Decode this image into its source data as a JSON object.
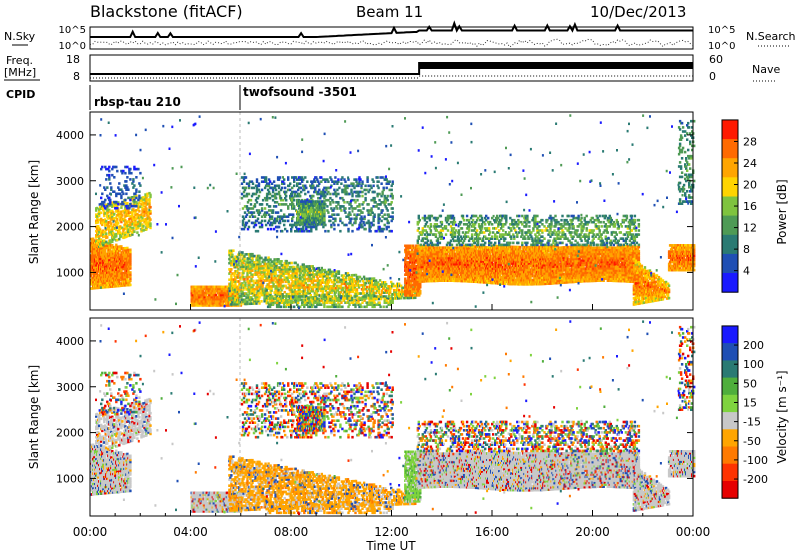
{
  "header": {
    "station": "Blackstone (fitACF)",
    "beam": "Beam 11",
    "date": "10/Dec/2013"
  },
  "noise_panel": {
    "left_label": "N.Sky",
    "right_label": "N.Search",
    "left_ticks": [
      "10^5",
      "10^0"
    ],
    "right_ticks": [
      "10^5",
      "10^0"
    ]
  },
  "freq_panel": {
    "left_label_1": "Freq.",
    "left_label_2": "[MHz]",
    "right_label": "Nave",
    "left_ticks": [
      "18",
      "8"
    ],
    "right_ticks": [
      "60",
      "0"
    ]
  },
  "cpid": {
    "label": "CPID",
    "modes": [
      {
        "name": "rbsp-tau 210",
        "start_hour": 0
      },
      {
        "name": "twofsound -3501",
        "start_hour": 6
      }
    ]
  },
  "colors": {
    "power_scale": [
      "#1a1aff",
      "#1f4fb4",
      "#2a7a73",
      "#4e9a55",
      "#7fc33f",
      "#ffd400",
      "#ffa500",
      "#ff6a00",
      "#ff1a00"
    ],
    "velocity_scale": [
      "#1a1aff",
      "#1f4fb4",
      "#2a7a73",
      "#4fae3c",
      "#7fd33f",
      "#c8c8c8",
      "#ffa500",
      "#ff7a00",
      "#ff3300",
      "#e60000"
    ]
  },
  "chart_data": [
    {
      "type": "heatmap",
      "title": "",
      "xlabel": "",
      "ylabel": "Slant Range [km]",
      "xlim": [
        0,
        24
      ],
      "ylim": [
        180,
        4500
      ],
      "y_ticks": [
        "1000",
        "2000",
        "3000",
        "4000"
      ],
      "colorbar": {
        "label": "Power [dB]",
        "ticks": [
          "4",
          "8",
          "12",
          "16",
          "20",
          "24",
          "28"
        ],
        "range": [
          0,
          30
        ]
      },
      "echo_regions": [
        {
          "region": "early-evening band",
          "hours": [
            0.0,
            1.5
          ],
          "range_km": [
            600,
            1800
          ]
        },
        {
          "region": "diffuse early echoes",
          "hours": [
            0.5,
            2.5
          ],
          "range_km": [
            1500,
            3200
          ]
        },
        {
          "region": "near-range strip",
          "hours": [
            4.0,
            6.0
          ],
          "range_km": [
            300,
            800
          ]
        },
        {
          "region": "descending arc",
          "hours": [
            6.0,
            12.8
          ],
          "range_km": [
            300,
            1500
          ]
        },
        {
          "region": "patchy upper echoes",
          "hours": [
            6.0,
            12.0
          ],
          "range_km": [
            1800,
            3100
          ]
        },
        {
          "region": "main band",
          "hours": [
            13.0,
            21.8
          ],
          "range_km": [
            750,
            1600
          ]
        },
        {
          "region": "late band",
          "hours": [
            21.8,
            24.0
          ],
          "range_km": [
            300,
            1600
          ]
        }
      ]
    },
    {
      "type": "heatmap",
      "title": "",
      "xlabel": "Time UT",
      "ylabel": "Slant Range [km]",
      "xlim": [
        0,
        24
      ],
      "ylim": [
        180,
        4500
      ],
      "x_ticks": [
        "00:00",
        "04:00",
        "08:00",
        "12:00",
        "16:00",
        "20:00",
        "00:00"
      ],
      "y_ticks": [
        "1000",
        "2000",
        "3000",
        "4000"
      ],
      "colorbar": {
        "label": "Velocity [m s⁻¹]",
        "ticks": [
          "200",
          "100",
          "50",
          "15",
          "-15",
          "-50",
          "-100",
          "-200"
        ],
        "range": [
          -250,
          250
        ]
      }
    }
  ]
}
